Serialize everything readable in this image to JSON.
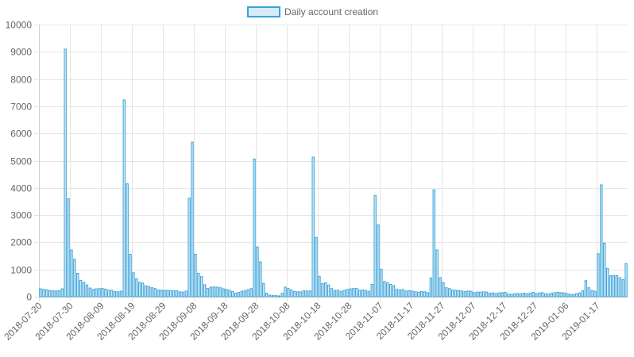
{
  "chart_data": {
    "type": "bar",
    "legend": {
      "position": "top",
      "label": "Daily account creation"
    },
    "colors": {
      "bar_fill": "#d6ebf8",
      "bar_stroke": "#3aa3d8",
      "grid": "#e5e5e5",
      "axis_text": "#666666"
    },
    "grid": true,
    "ylim": [
      0,
      10000
    ],
    "y_ticks": [
      0,
      1000,
      2000,
      3000,
      4000,
      5000,
      6000,
      7000,
      8000,
      9000,
      10000
    ],
    "x_tick_labels": [
      "2018-07-20",
      "2018-07-30",
      "2018-08-09",
      "2018-08-19",
      "2018-08-29",
      "2018-09-08",
      "2018-09-18",
      "2018-09-28",
      "2018-10-08",
      "2018-10-18",
      "2018-10-28",
      "2018-11-07",
      "2018-11-17",
      "2018-11-27",
      "2018-12-07",
      "2018-12-17",
      "2018-12-27",
      "2019-01-06",
      "2019-01-17"
    ],
    "start_date": "2018-07-20",
    "values": [
      290,
      270,
      250,
      230,
      220,
      210,
      220,
      290,
      9100,
      3600,
      1720,
      1380,
      860,
      600,
      530,
      430,
      320,
      270,
      290,
      300,
      300,
      280,
      240,
      240,
      190,
      180,
      200,
      7230,
      4150,
      1560,
      880,
      660,
      530,
      500,
      400,
      370,
      330,
      300,
      250,
      240,
      230,
      240,
      230,
      220,
      220,
      180,
      170,
      210,
      3620,
      5680,
      1560,
      860,
      740,
      440,
      310,
      350,
      360,
      350,
      330,
      290,
      270,
      240,
      190,
      130,
      160,
      200,
      220,
      260,
      300,
      5060,
      1830,
      1280,
      490,
      130,
      60,
      40,
      40,
      30,
      130,
      350,
      300,
      250,
      190,
      180,
      180,
      220,
      210,
      210,
      5130,
      2180,
      750,
      480,
      510,
      430,
      300,
      230,
      240,
      200,
      230,
      270,
      290,
      300,
      310,
      240,
      250,
      230,
      200,
      450,
      3720,
      2640,
      1010,
      560,
      510,
      450,
      410,
      270,
      250,
      260,
      210,
      220,
      210,
      180,
      170,
      190,
      180,
      150,
      690,
      3930,
      1720,
      700,
      520,
      330,
      300,
      250,
      240,
      230,
      210,
      190,
      210,
      200,
      150,
      170,
      170,
      180,
      170,
      130,
      140,
      120,
      140,
      150,
      160,
      100,
      90,
      110,
      120,
      110,
      130,
      110,
      130,
      160,
      110,
      140,
      150,
      110,
      100,
      130,
      150,
      160,
      150,
      140,
      110,
      90,
      80,
      110,
      140,
      220,
      590,
      330,
      230,
      200,
      1580,
      4110,
      1970,
      1040,
      770,
      780,
      780,
      700,
      630,
      1220
    ]
  }
}
